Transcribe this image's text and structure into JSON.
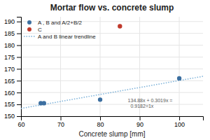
{
  "chart_data": {
    "type": "scatter",
    "title": "Mortar flow vs. concrete slump",
    "xlabel": "Concrete slump [mm]",
    "xlim": [
      60,
      106
    ],
    "ylim": [
      150,
      192
    ],
    "xticks": [
      60,
      70,
      80,
      90,
      100
    ],
    "yticks": [
      150,
      155,
      160,
      165,
      170,
      175,
      180,
      185,
      190
    ],
    "grid": true,
    "legend": "upper left",
    "series": [
      {
        "name": "A , B and A/2+B/2",
        "type": "scatter",
        "marker": "circle",
        "color": "#3c6fa0",
        "x": [
          65,
          65.8,
          80,
          100
        ],
        "values": [
          155.5,
          155.5,
          157,
          166
        ]
      },
      {
        "name": "C",
        "type": "scatter",
        "marker": "circle",
        "color": "#c0392b",
        "x": [
          85
        ],
        "values": [
          188
        ]
      },
      {
        "name": "A and B linear trendline",
        "type": "line",
        "line_style": "dotted",
        "color": "#7ab0d8",
        "x": [
          60,
          106
        ],
        "values": [
          153.2789,
          166.8479
        ]
      }
    ],
    "annotations": [
      {
        "text": "134.88x + 0.3019x =\n  0.9182=1x",
        "x": 87,
        "y": 157.5
      }
    ]
  }
}
